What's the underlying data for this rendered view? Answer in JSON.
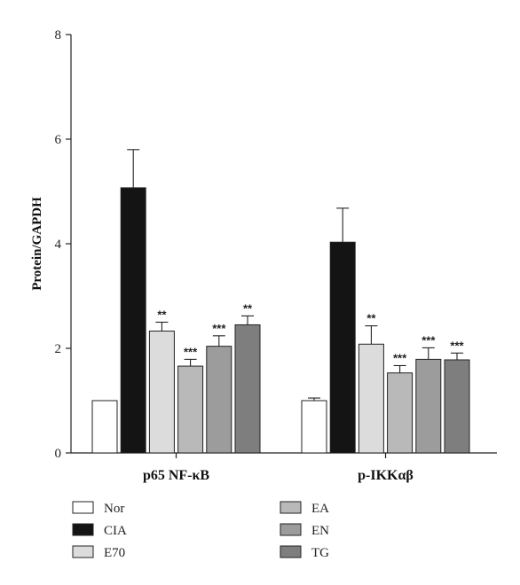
{
  "chart_data": {
    "type": "bar",
    "ylabel": "Protein/GAPDH",
    "ylim": [
      0,
      8
    ],
    "yticks": [
      "0",
      "2",
      "4",
      "6",
      "8"
    ],
    "categories": [
      "p65 NF-κB",
      "p-IKKαβ"
    ],
    "series": [
      {
        "name": "Nor",
        "color": "#ffffff",
        "values": [
          1.0,
          1.0
        ],
        "errors": [
          0.0,
          0.05
        ],
        "stars": [
          "",
          ""
        ]
      },
      {
        "name": "CIA",
        "color": "#141414",
        "values": [
          5.07,
          4.03
        ],
        "errors": [
          0.73,
          0.65
        ],
        "stars": [
          "",
          ""
        ]
      },
      {
        "name": "E70",
        "color": "#dcdcdc",
        "values": [
          2.33,
          2.08
        ],
        "errors": [
          0.17,
          0.35
        ],
        "stars": [
          "**",
          "**"
        ]
      },
      {
        "name": "EA",
        "color": "#b9b9b9",
        "values": [
          1.66,
          1.53
        ],
        "errors": [
          0.13,
          0.14
        ],
        "stars": [
          "***",
          "***"
        ]
      },
      {
        "name": "EN",
        "color": "#9c9c9c",
        "values": [
          2.04,
          1.79
        ],
        "errors": [
          0.2,
          0.22
        ],
        "stars": [
          "***",
          "***"
        ]
      },
      {
        "name": "TG",
        "color": "#7e7e7e",
        "values": [
          2.45,
          1.78
        ],
        "errors": [
          0.17,
          0.13
        ],
        "stars": [
          "**",
          "***"
        ]
      }
    ],
    "legend_position": "bottom"
  }
}
